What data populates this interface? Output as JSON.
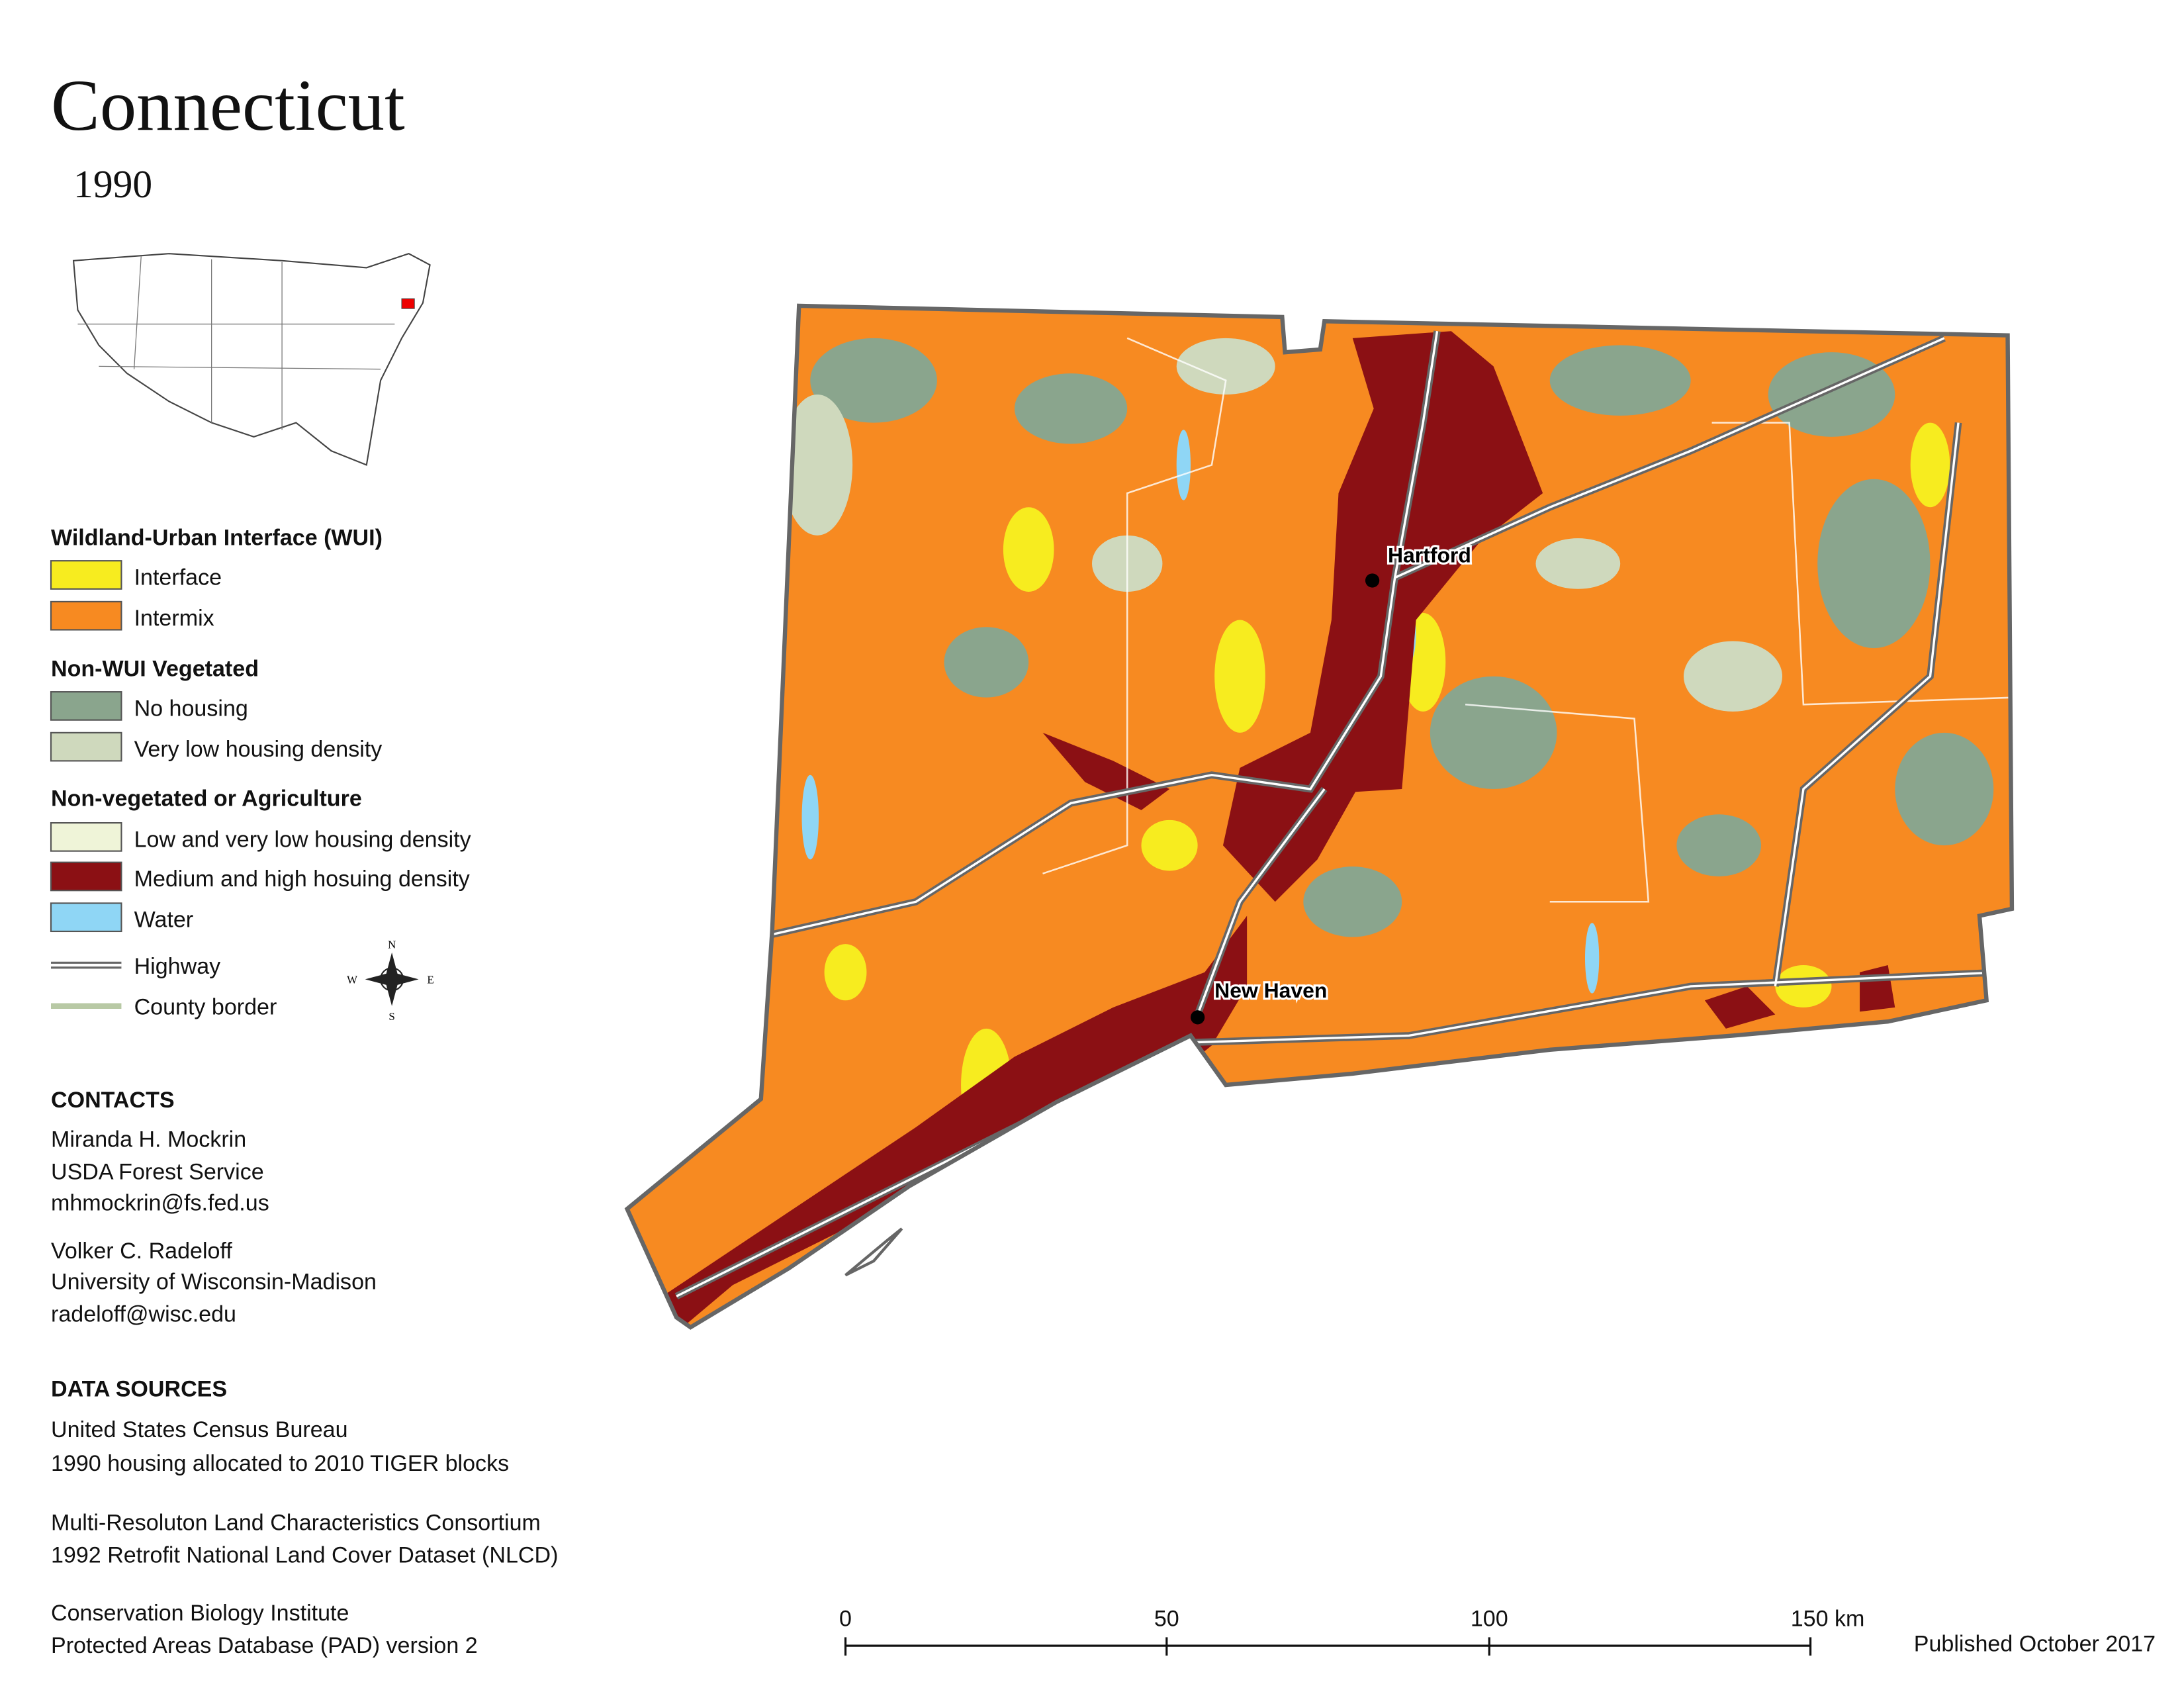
{
  "header": {
    "title": "Connecticut",
    "year": "1990"
  },
  "legend": {
    "sections": [
      {
        "title": "Wildland-Urban Interface (WUI)",
        "items": [
          "Interface",
          "Intermix"
        ]
      },
      {
        "title": "Non-WUI Vegetated",
        "items": [
          "No housing",
          "Very low housing density"
        ]
      },
      {
        "title": "Non-vegetated or Agriculture",
        "items": [
          "Low and very low housing density",
          "Medium and high hosuing density",
          "Water"
        ]
      }
    ],
    "lines": [
      "Highway",
      "County border"
    ]
  },
  "compass": {
    "n": "N",
    "s": "S",
    "e": "E",
    "w": "W"
  },
  "contacts": {
    "title": "CONTACTS",
    "people": [
      [
        "Miranda H. Mockrin",
        "USDA Forest Service",
        "mhmockrin@fs.fed.us"
      ],
      [
        "Volker C. Radeloff",
        "University of Wisconsin-Madison",
        "radeloff@wisc.edu"
      ]
    ]
  },
  "sources": {
    "title": "DATA SOURCES",
    "entries": [
      [
        "United States Census Bureau",
        "1990 housing allocated to 2010 TIGER blocks"
      ],
      [
        "Multi-Resoluton Land Characteristics Consortium",
        "1992 Retrofit National Land Cover Dataset (NLCD)"
      ],
      [
        "Conservation Biology Institute",
        "Protected Areas Database (PAD) version 2"
      ]
    ]
  },
  "map": {
    "cities": [
      "Hartford",
      "New Haven"
    ]
  },
  "scale_bar": {
    "labels": [
      "0",
      "50",
      "100",
      "150 km"
    ]
  },
  "footer": {
    "published": "Published October 2017"
  }
}
